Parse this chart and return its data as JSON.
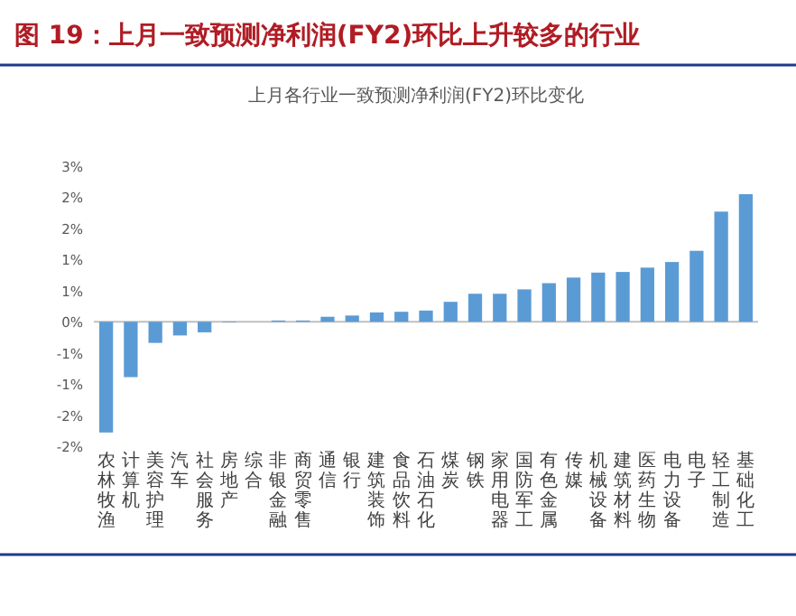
{
  "chart_data": {
    "type": "bar",
    "title": "图 19：上月一致预测净利润(FY2)环比上升较多的行业",
    "subtitle": "上月各行业一致预测净利润(FY2)环比变化",
    "categories": [
      "农林牧渔",
      "计算机",
      "美容护理",
      "汽车",
      "社会服务",
      "房地产",
      "综合",
      "非银金融",
      "商贸零售",
      "通信",
      "银行",
      "建筑装饰",
      "食品饮料",
      "石油石化",
      "煤炭",
      "钢铁",
      "家用电器",
      "国防军工",
      "有色金属",
      "传媒",
      "机械设备",
      "建筑材料",
      "医药生物",
      "电力设备",
      "电子",
      "轻工制造",
      "基础化工"
    ],
    "values": [
      -1.78,
      -0.89,
      -0.34,
      -0.22,
      -0.17,
      -0.01,
      0,
      0.02,
      0.02,
      0.08,
      0.1,
      0.15,
      0.16,
      0.18,
      0.32,
      0.45,
      0.45,
      0.52,
      0.62,
      0.71,
      0.79,
      0.8,
      0.87,
      0.96,
      1.14,
      1.77,
      2.05
    ],
    "color": "#5b9bd5",
    "ylim": [
      -2,
      2.5
    ],
    "yticks": [
      {
        "value": 2.5,
        "label": "3%"
      },
      {
        "value": 2,
        "label": "2%"
      },
      {
        "value": 1.5,
        "label": "2%"
      },
      {
        "value": 1,
        "label": "1%"
      },
      {
        "value": 0.5,
        "label": "1%"
      },
      {
        "value": 0,
        "label": "0%"
      },
      {
        "value": -0.5,
        "label": "-1%"
      },
      {
        "value": -1,
        "label": "-1%"
      },
      {
        "value": -1.5,
        "label": "-2%"
      },
      {
        "value": -2,
        "label": "-2%"
      }
    ]
  }
}
